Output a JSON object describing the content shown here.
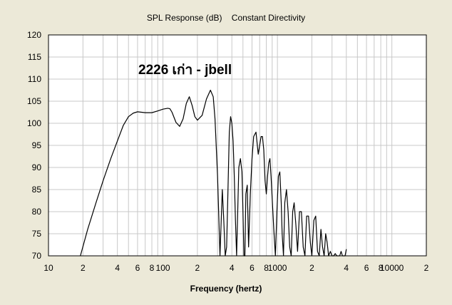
{
  "chart_data": {
    "type": "line",
    "title": "SPL Response (dB)    Constant Directivity",
    "xlabel": "Frequency (hertz)",
    "ylabel": "",
    "annotation": "2226 เก่า - jbell",
    "xscale": "log",
    "xlim": [
      10,
      20000
    ],
    "ylim": [
      70,
      120
    ],
    "grid": true,
    "line_color": "#000000",
    "background_color": "#ffffff",
    "x_ticks": [
      {
        "v": 10,
        "label": "10"
      },
      {
        "v": 20,
        "label": "2"
      },
      {
        "v": 40,
        "label": "4"
      },
      {
        "v": 60,
        "label": "6"
      },
      {
        "v": 80,
        "label": "8"
      },
      {
        "v": 100,
        "label": "100"
      },
      {
        "v": 200,
        "label": "2"
      },
      {
        "v": 400,
        "label": "4"
      },
      {
        "v": 600,
        "label": "6"
      },
      {
        "v": 800,
        "label": "8"
      },
      {
        "v": 1000,
        "label": "1000"
      },
      {
        "v": 2000,
        "label": "2"
      },
      {
        "v": 4000,
        "label": "4"
      },
      {
        "v": 6000,
        "label": "6"
      },
      {
        "v": 8000,
        "label": "8"
      },
      {
        "v": 10000,
        "label": "10000"
      },
      {
        "v": 20000,
        "label": "2"
      }
    ],
    "y_ticks": [
      70,
      75,
      80,
      85,
      90,
      95,
      100,
      105,
      110,
      115,
      120
    ],
    "series": [
      {
        "x": [
          19,
          22,
          26,
          30,
          35,
          40,
          45,
          50,
          55,
          60,
          65,
          70,
          80,
          90,
          100,
          110,
          115,
          120,
          130,
          140,
          150,
          160,
          170,
          180,
          190,
          200,
          220,
          240,
          260,
          275,
          285,
          300,
          315,
          330,
          340,
          350,
          360,
          370,
          380,
          390,
          400,
          410,
          420,
          430,
          440,
          450,
          460,
          475,
          490,
          500,
          510,
          520,
          530,
          545,
          560,
          580,
          600,
          620,
          650,
          680,
          700,
          720,
          740,
          760,
          780,
          800,
          820,
          840,
          860,
          880,
          900,
          930,
          960,
          990,
          1020,
          1050,
          1080,
          1100,
          1130,
          1160,
          1200,
          1240,
          1280,
          1320,
          1360,
          1400,
          1450,
          1500,
          1560,
          1620,
          1680,
          1740,
          1800,
          1870,
          1940,
          2000,
          2080,
          2160,
          2240,
          2320,
          2400,
          2480,
          2560,
          2640,
          2720,
          2800,
          2900,
          3000,
          3100,
          3200,
          3300,
          3400,
          3500,
          3600,
          3700,
          3800,
          3900,
          4000
        ],
        "y": [
          70,
          76,
          82,
          87,
          92,
          96,
          99.5,
          101.5,
          102.3,
          102.6,
          102.5,
          102.4,
          102.4,
          102.8,
          103.2,
          103.4,
          103.3,
          102.5,
          100.2,
          99.3,
          101,
          104.5,
          106,
          104,
          101.5,
          100.7,
          101.8,
          105.5,
          107.5,
          106,
          101,
          88,
          70,
          85,
          78,
          70,
          72,
          85,
          98,
          101.5,
          100,
          96,
          88,
          78,
          70,
          80,
          90,
          92,
          89,
          80,
          70,
          70,
          84,
          86,
          72,
          84,
          92,
          97,
          98,
          93,
          95,
          97,
          97,
          94,
          87,
          84,
          88,
          91,
          92,
          88,
          83,
          76,
          70,
          80,
          88,
          89,
          82,
          75,
          70,
          82,
          85,
          80,
          72,
          70,
          80,
          82,
          77,
          71,
          80,
          80,
          72,
          70,
          79,
          79,
          73,
          70,
          78,
          79,
          71,
          70,
          76,
          72,
          70,
          75,
          73,
          70,
          71,
          70,
          70,
          70.5,
          70,
          70,
          70,
          71,
          70,
          70,
          70,
          71.5
        ]
      }
    ]
  }
}
